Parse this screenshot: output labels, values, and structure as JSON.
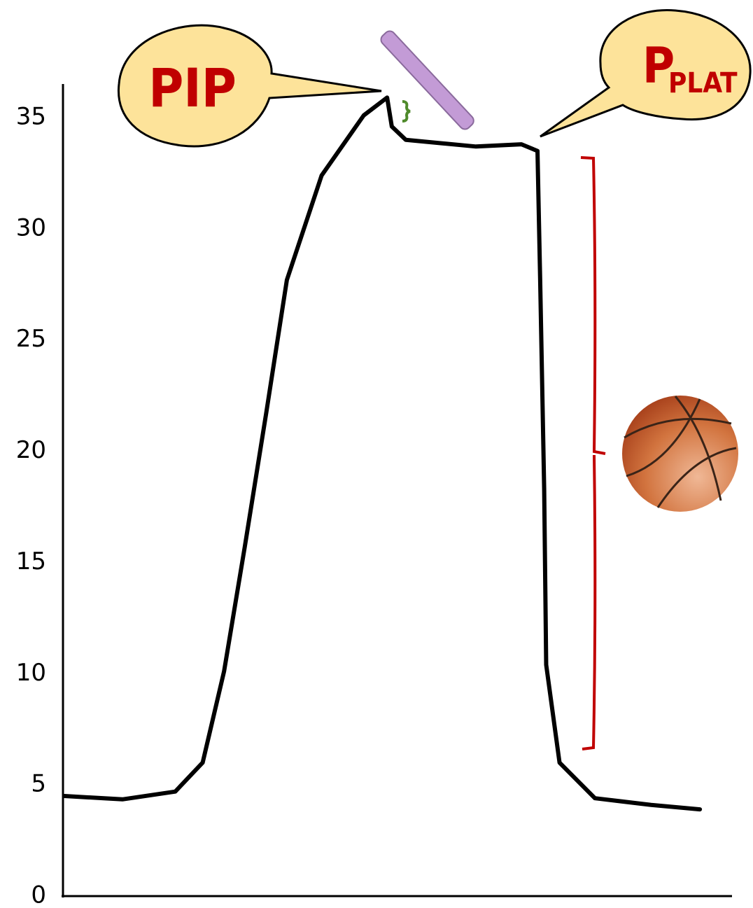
{
  "chart_data": {
    "type": "line",
    "x": [
      0.2,
      8.9,
      16.8,
      20.9,
      24.1,
      27.2,
      30.4,
      33.5,
      38.7,
      45,
      48.5,
      49.2,
      51.3,
      61.8,
      68.6,
      71,
      71.4,
      72,
      72.3,
      74.3,
      79.6,
      88,
      95.3
    ],
    "values": [
      4.5,
      4.35,
      4.7,
      6.0,
      10.1,
      15.7,
      21.7,
      27.7,
      32.4,
      35.1,
      35.9,
      34.6,
      34.0,
      33.7,
      33.8,
      33.5,
      27.7,
      18.3,
      10.4,
      6.0,
      4.4,
      4.1,
      3.9
    ],
    "color": "#000000",
    "xlim": [
      0,
      100
    ],
    "ylim": [
      0,
      35
    ],
    "yticks": [
      0,
      5,
      10,
      15,
      20,
      25,
      30,
      35
    ],
    "grid": false,
    "annotations": [
      {
        "text": "PIP"
      },
      {
        "text": "P",
        "subscript": "PLAT"
      }
    ]
  }
}
